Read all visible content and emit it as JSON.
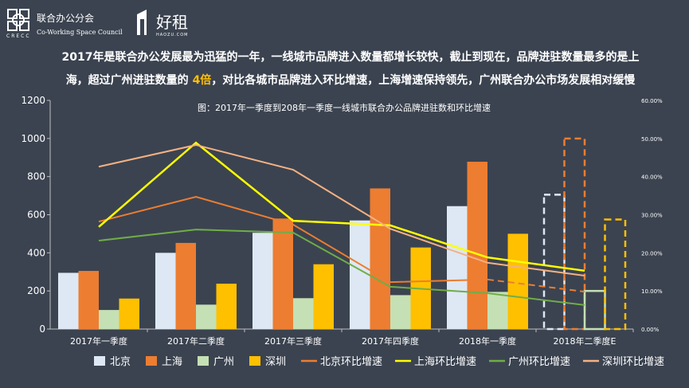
{
  "header": {
    "logo_cn": "联合办公分会",
    "logo_en": "Co-Working Space Council",
    "logo_abbr": "CRECC",
    "partner_name": "好租",
    "partner_url": "HAOZU.COM"
  },
  "headline": {
    "line1": "2017年是联合办公发展最为迅猛的一年，一线城市品牌进入数量都增长较快，截止到现在，品牌进驻数量最多的是上",
    "line2_a": "海，超过广州进驻数量的 ",
    "line2_highlight": "4倍",
    "line2_b": "，对比各城市品牌进入环比增速，上海增速保持领先，广州联合办公市场发展相对缓慢"
  },
  "chart_data": {
    "type": "bar+line",
    "title": "图：2017年一季度到208年一季度一线城市联合办公品牌进驻数和环比增速",
    "categories": [
      "2017年一季度",
      "2017年二季度",
      "2017年三季度",
      "2017年四季度",
      "2018年一季度",
      "2018年二季度E"
    ],
    "ylim": [
      0,
      1200
    ],
    "yticks": [
      "0",
      "200",
      "400",
      "600",
      "800",
      "1000",
      "1200"
    ],
    "y2lim": [
      0,
      60
    ],
    "y2ticks": [
      "0.00%",
      "10.00%",
      "20.00%",
      "30.00%",
      "40.00%",
      "50.00%",
      "60.00%"
    ],
    "legend_position": "bottom",
    "grid": false,
    "bar_series": [
      {
        "name": "北京",
        "color": "#dde8f4",
        "values": [
          295,
          400,
          505,
          570,
          645,
          705
        ]
      },
      {
        "name": "上海",
        "color": "#ed7d31",
        "values": [
          305,
          452,
          580,
          738,
          878,
          1000
        ]
      },
      {
        "name": "广州",
        "color": "#c5e0b4",
        "values": [
          100,
          128,
          162,
          178,
          195,
          200
        ]
      },
      {
        "name": "深圳",
        "color": "#ffc000",
        "values": [
          160,
          238,
          340,
          428,
          500,
          575
        ]
      }
    ],
    "estimated_category": "2018年二季度E",
    "line_series": [
      {
        "name": "北京环比增速",
        "color": "#ed7d31",
        "values": [
          28.2,
          34.7,
          27.4,
          12.3,
          13.0,
          9.8
        ]
      },
      {
        "name": "上海环比增速",
        "color": "#ffff00",
        "values": [
          26.8,
          48.9,
          28.4,
          27.2,
          18.8,
          15.3
        ]
      },
      {
        "name": "广州环比增速",
        "color": "#70ad47",
        "values": [
          23.2,
          26.1,
          25.3,
          11.1,
          9.4,
          6.3
        ]
      },
      {
        "name": "深圳环比增速",
        "color": "#f4b183",
        "values": [
          42.6,
          48.3,
          41.8,
          26.3,
          17.4,
          14.0
        ]
      }
    ]
  }
}
